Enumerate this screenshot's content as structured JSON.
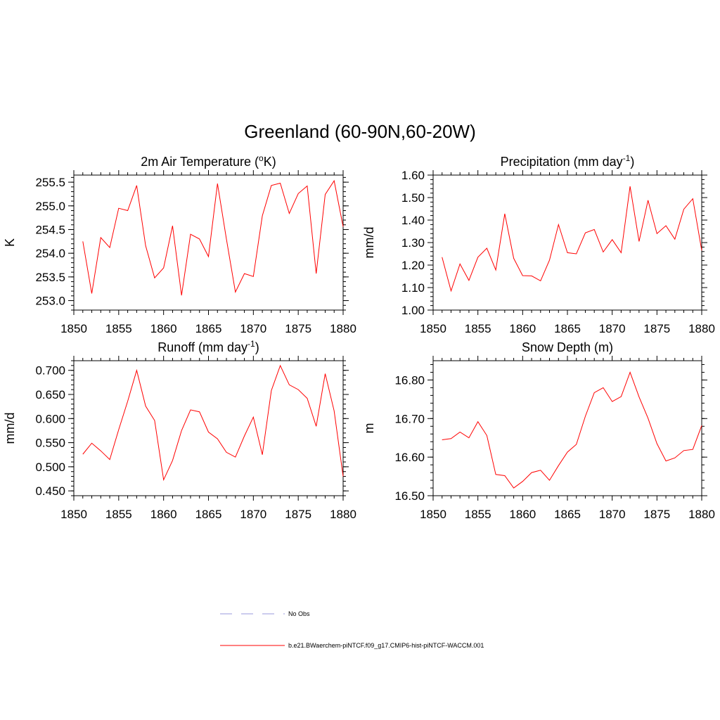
{
  "title": "Greenland (60-90N,60-20W)",
  "colors": {
    "model": "#ff0000",
    "obs": "#9999dd",
    "axis": "#000000"
  },
  "legend": {
    "entries": [
      {
        "label": "No Obs",
        "style": "dashed",
        "color": "#9999dd"
      },
      {
        "label": "b.e21.BWaerchem-piNTCF.f09_g17.CMIP6-hist-piNTCF-WACCM.001",
        "style": "solid",
        "color": "#ff0000"
      }
    ]
  },
  "chart_data": [
    {
      "type": "line",
      "title": "2m Air Temperature (",
      "title_sup1": "o",
      "title_rest": "K)",
      "title_sup2": "",
      "title_end": "",
      "ylabel": "K",
      "xlim": [
        1850,
        1880
      ],
      "ylim": [
        252.8,
        255.65
      ],
      "xticks": [
        1850,
        1855,
        1860,
        1865,
        1870,
        1875,
        1880
      ],
      "yticks": [
        "253.0",
        "253.5",
        "254.0",
        "254.5",
        "255.0",
        "255.5"
      ],
      "x": [
        1851,
        1852,
        1853,
        1854,
        1855,
        1856,
        1857,
        1858,
        1859,
        1860,
        1861,
        1862,
        1863,
        1864,
        1865,
        1866,
        1867,
        1868,
        1869,
        1870,
        1871,
        1872,
        1873,
        1874,
        1875,
        1876,
        1877,
        1878,
        1879,
        1880
      ],
      "series": [
        {
          "values": [
            254.25,
            253.15,
            254.33,
            254.12,
            254.95,
            254.9,
            255.43,
            254.16,
            253.48,
            253.69,
            254.58,
            253.11,
            254.4,
            254.3,
            253.93,
            255.47,
            254.3,
            253.18,
            253.57,
            253.51,
            254.79,
            255.43,
            255.48,
            254.84,
            255.26,
            255.42,
            253.57,
            255.24,
            255.53,
            254.56
          ]
        }
      ]
    },
    {
      "type": "line",
      "title": "Precipitation (mm day",
      "title_sup1": "",
      "title_rest": "",
      "title_sup2": "-1",
      "title_end": ")",
      "ylabel": "mm/d",
      "xlim": [
        1850,
        1880
      ],
      "ylim": [
        1.0,
        1.6
      ],
      "xticks": [
        1850,
        1855,
        1860,
        1865,
        1870,
        1875,
        1880
      ],
      "yticks": [
        "1.00",
        "1.10",
        "1.20",
        "1.30",
        "1.40",
        "1.50",
        "1.60"
      ],
      "x": [
        1851,
        1852,
        1853,
        1854,
        1855,
        1856,
        1857,
        1858,
        1859,
        1860,
        1861,
        1862,
        1863,
        1864,
        1865,
        1866,
        1867,
        1868,
        1869,
        1870,
        1871,
        1872,
        1873,
        1874,
        1875,
        1876,
        1877,
        1878,
        1879,
        1880
      ],
      "series": [
        {
          "values": [
            1.235,
            1.085,
            1.205,
            1.132,
            1.235,
            1.275,
            1.178,
            1.428,
            1.23,
            1.153,
            1.152,
            1.13,
            1.222,
            1.38,
            1.255,
            1.25,
            1.343,
            1.358,
            1.258,
            1.313,
            1.255,
            1.55,
            1.305,
            1.488,
            1.34,
            1.375,
            1.315,
            1.448,
            1.495,
            1.265
          ]
        }
      ]
    },
    {
      "type": "line",
      "title": "Runoff (mm day",
      "title_sup1": "",
      "title_rest": "",
      "title_sup2": "-1",
      "title_end": ")",
      "ylabel": "mm/d",
      "xlim": [
        1850,
        1880
      ],
      "ylim": [
        0.44,
        0.72
      ],
      "xticks": [
        1850,
        1855,
        1860,
        1865,
        1870,
        1875,
        1880
      ],
      "yticks": [
        "0.450",
        "0.500",
        "0.550",
        "0.600",
        "0.650",
        "0.700"
      ],
      "x": [
        1851,
        1852,
        1853,
        1854,
        1855,
        1856,
        1857,
        1858,
        1859,
        1860,
        1861,
        1862,
        1863,
        1864,
        1865,
        1866,
        1867,
        1868,
        1869,
        1870,
        1871,
        1872,
        1873,
        1874,
        1875,
        1876,
        1877,
        1878,
        1879,
        1880
      ],
      "series": [
        {
          "values": [
            0.526,
            0.549,
            0.533,
            0.515,
            0.577,
            0.636,
            0.7,
            0.626,
            0.596,
            0.473,
            0.513,
            0.575,
            0.618,
            0.614,
            0.572,
            0.558,
            0.53,
            0.52,
            0.564,
            0.603,
            0.525,
            0.658,
            0.71,
            0.67,
            0.66,
            0.642,
            0.584,
            0.693,
            0.616,
            0.48
          ]
        }
      ]
    },
    {
      "type": "line",
      "title": "Snow Depth (m)",
      "title_sup1": "",
      "title_rest": "",
      "title_sup2": "",
      "title_end": "",
      "ylabel": "m",
      "xlim": [
        1850,
        1880
      ],
      "ylim": [
        16.5,
        16.85
      ],
      "xticks": [
        1850,
        1855,
        1860,
        1865,
        1870,
        1875,
        1880
      ],
      "yticks": [
        "16.50",
        "16.60",
        "16.70",
        "16.80"
      ],
      "x": [
        1851,
        1852,
        1853,
        1854,
        1855,
        1856,
        1857,
        1858,
        1859,
        1860,
        1861,
        1862,
        1863,
        1864,
        1865,
        1866,
        1867,
        1868,
        1869,
        1870,
        1871,
        1872,
        1873,
        1874,
        1875,
        1876,
        1877,
        1878,
        1879,
        1880
      ],
      "series": [
        {
          "values": [
            16.645,
            16.648,
            16.665,
            16.65,
            16.692,
            16.656,
            16.555,
            16.552,
            16.52,
            16.537,
            16.56,
            16.566,
            16.54,
            16.578,
            16.613,
            16.633,
            16.706,
            16.767,
            16.78,
            16.744,
            16.757,
            16.82,
            16.756,
            16.701,
            16.635,
            16.59,
            16.598,
            16.617,
            16.62,
            16.682
          ]
        }
      ]
    }
  ]
}
